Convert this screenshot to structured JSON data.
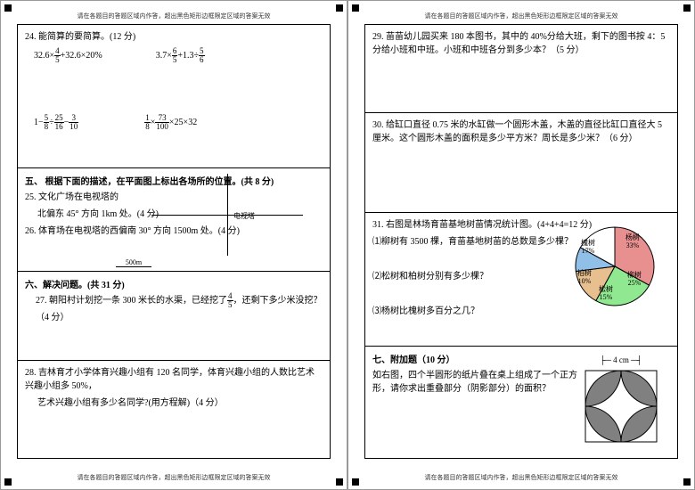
{
  "header_note": "请在各题目的答题区域内作答，超出黑色矩形边框限定区域的答案无效",
  "footer_note": "请在各题目的答题区域内作答，超出黑色矩形边框限定区域的答案无效",
  "left": {
    "q24": {
      "title": "24. 能简算的要简算。(12 分)",
      "f1": "32.6×",
      "f1b": "+32.6×20%",
      "f2a": "3.7×",
      "f2b": "+1.3÷",
      "f3a": "1−",
      "f3b": "÷",
      "f3c": "−",
      "f4a": "×",
      "f4b": "×25×32"
    },
    "sec5": {
      "head": "五、 根据下面的描述，在平面图上标出各场所的位置。(共 8 分)",
      "q25": "25. 文化广场在电视塔的",
      "q25b": "北偏东 45° 方向 1km 处。(4 分)",
      "q26": "26. 体育场在电视塔的西偏南 30° 方向 1500m 处。(4 分)",
      "tower": "电视塔",
      "scale": "500m"
    },
    "sec6": {
      "head": "六、解决问题。(共 31 分)",
      "q27a": "27. 朝阳村计划挖一条 300 米长的水渠，已经挖了",
      "q27b": "，还剩下多少米没挖？（4 分）",
      "q28": "28. 吉林育才小学体育兴趣小组有 120 名同学，体育兴趣小组的人数比艺术兴趣小组多 50%，",
      "q28b": "艺术兴趣小组有多少名同学?(用方程解)（4 分）"
    }
  },
  "right": {
    "q29": "29. 苗苗幼儿园买来 180 本图书，其中的 40%分给大班，剩下的图书按 4：5 分给小班和中班。小班和中班各分到多少本？（5 分）",
    "q30": "30. 给缸口直径 0.75 米的水缸做一个圆形木盖，木盖的直径比缸口直径大 5 厘米。这个圆形木盖的面积是多少平方米？周长是多少米？（6 分）",
    "q31": {
      "title": "31. 右图是林场育苗基地树苗情况统计图。(4+4+4=12 分)",
      "p1": "⑴柳树有 3500 棵，育苗基地树苗的总数是多少棵？",
      "p2": "⑵松树和柏树分别有多少棵？",
      "p3": "⑶杨树比槐树多百分之几？",
      "pie": {
        "slices": [
          {
            "label": "杨树",
            "pct": "33%",
            "color": "#e89090",
            "angle": 118.8
          },
          {
            "label": "柳树",
            "pct": "25%",
            "color": "#90e890",
            "angle": 90
          },
          {
            "label": "松树",
            "pct": "15%",
            "color": "#e8c090",
            "angle": 54
          },
          {
            "label": "柏树",
            "pct": "10%",
            "color": "#90c0e8",
            "angle": 36
          },
          {
            "label": "槐树",
            "pct": "17%",
            "color": "#ffffff",
            "angle": 61.2
          }
        ],
        "radius": 44,
        "stroke": "#000"
      }
    },
    "sec7": {
      "head": "七、附加题（10 分）",
      "body": "如右图，四个半圆形的纸片叠在桌上组成了一个正方形，请你求出重叠部分（阴影部分）的面积？",
      "side_label": "4 cm",
      "petal_color": "#808080",
      "bg_color": "#ffffff"
    }
  },
  "fracs": {
    "f4_5": {
      "n": "4",
      "d": "5"
    },
    "f6_5": {
      "n": "6",
      "d": "5"
    },
    "f5_6": {
      "n": "5",
      "d": "6"
    },
    "f5_8": {
      "n": "5",
      "d": "8"
    },
    "f25_16": {
      "n": "25",
      "d": "16"
    },
    "f3_10": {
      "n": "3",
      "d": "10"
    },
    "f1_8": {
      "n": "1",
      "d": "8"
    },
    "f73_100": {
      "n": "73",
      "d": "100"
    }
  }
}
